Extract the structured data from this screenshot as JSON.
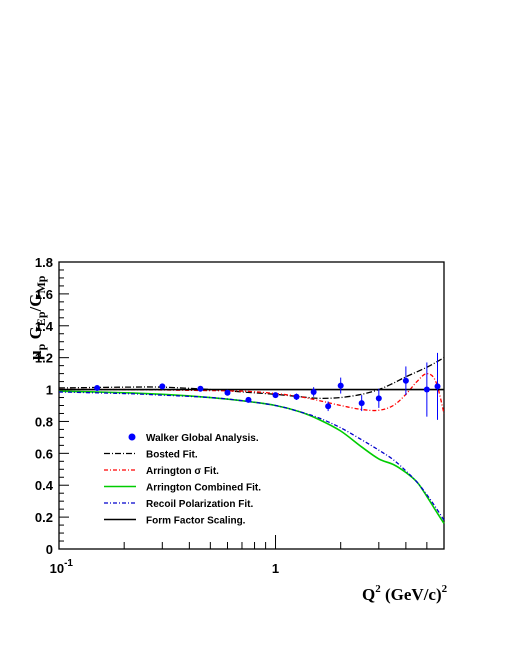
{
  "chart_data": {
    "type": "line",
    "xscale": "log",
    "xlim": [
      0.1,
      6
    ],
    "ylim": [
      0,
      1.8
    ],
    "x_tick_labels": [
      {
        "value": 0.1,
        "label": "10",
        "sup": "-1"
      },
      {
        "value": 1,
        "label": "1",
        "sup": ""
      }
    ],
    "y_ticks": [
      0,
      0.2,
      0.4,
      0.6,
      0.8,
      1,
      1.2,
      1.4,
      1.6,
      1.8
    ],
    "y_tick_labels": [
      "0",
      "0.2",
      "0.4",
      "0.6",
      "0.8",
      "1",
      "1.2",
      "1.4",
      "1.6",
      "1.8"
    ],
    "ylabel": {
      "mu": "μ",
      "mu_sub": "p",
      "g": "G",
      "g_sub": "Ep",
      "slash": "/G",
      "den_sub": "Mp"
    },
    "xlabel": {
      "q": "Q",
      "q_sup": "2",
      "unit": " (GeV/c)",
      "unit_sup": "2"
    },
    "grid": false,
    "legend_position": "bottom-left",
    "points": {
      "name": "Walker Global Analysis.",
      "color": "#0000ff",
      "data": [
        {
          "x": 0.15,
          "y": 1.01,
          "err": 0.01
        },
        {
          "x": 0.3,
          "y": 1.02,
          "err": 0.01
        },
        {
          "x": 0.45,
          "y": 1.005,
          "err": 0.01
        },
        {
          "x": 0.6,
          "y": 0.98,
          "err": 0.012
        },
        {
          "x": 0.75,
          "y": 0.935,
          "err": 0.015
        },
        {
          "x": 1.0,
          "y": 0.965,
          "err": 0.015
        },
        {
          "x": 1.25,
          "y": 0.955,
          "err": 0.02
        },
        {
          "x": 1.5,
          "y": 0.985,
          "err": 0.03
        },
        {
          "x": 1.75,
          "y": 0.895,
          "err": 0.03
        },
        {
          "x": 2.0,
          "y": 1.025,
          "err": 0.05
        },
        {
          "x": 2.5,
          "y": 0.915,
          "err": 0.05
        },
        {
          "x": 3.0,
          "y": 0.945,
          "err": 0.06
        },
        {
          "x": 4.0,
          "y": 1.055,
          "err": 0.09
        },
        {
          "x": 5.0,
          "y": 1.0,
          "err": 0.17
        },
        {
          "x": 5.6,
          "y": 1.02,
          "err": 0.21
        }
      ]
    },
    "series": [
      {
        "name": "Bosted Fit.",
        "color": "#000000",
        "dash": "6 2 1 2",
        "x": [
          0.1,
          0.2,
          0.3,
          0.5,
          0.7,
          1.0,
          1.3,
          1.6,
          2.0,
          2.5,
          3.0,
          3.5,
          4.0,
          5.0,
          6.0
        ],
        "y": [
          1.01,
          1.015,
          1.015,
          1.0,
          0.985,
          0.97,
          0.955,
          0.945,
          0.95,
          0.97,
          1.0,
          1.04,
          1.08,
          1.14,
          1.2
        ]
      },
      {
        "name": "Arrington σ Fit.",
        "color": "#ff0000",
        "dash": "4 2 1 2",
        "x": [
          0.1,
          0.2,
          0.4,
          0.7,
          1.0,
          1.3,
          1.6,
          2.0,
          2.5,
          3.0,
          3.5,
          4.0,
          4.5,
          5.0,
          5.5,
          6.0
        ],
        "y": [
          1.0,
          1.0,
          0.995,
          0.99,
          0.975,
          0.955,
          0.93,
          0.9,
          0.875,
          0.87,
          0.9,
          0.97,
          1.05,
          1.1,
          1.05,
          0.85
        ]
      },
      {
        "name": "Arrington Combined Fit.",
        "color": "#00cc00",
        "dash": "",
        "x": [
          0.1,
          0.2,
          0.3,
          0.5,
          0.7,
          1.0,
          1.3,
          1.6,
          2.0,
          2.5,
          3.0,
          3.5,
          4.0,
          4.5,
          5.0,
          5.5,
          6.0
        ],
        "y": [
          0.99,
          0.98,
          0.97,
          0.95,
          0.93,
          0.9,
          0.86,
          0.81,
          0.74,
          0.64,
          0.565,
          0.53,
          0.48,
          0.42,
          0.33,
          0.24,
          0.16
        ]
      },
      {
        "name": "Recoil Polarization Fit.",
        "color": "#0000cc",
        "dash": "4 2 1 2",
        "x": [
          0.1,
          0.2,
          0.3,
          0.5,
          0.7,
          1.0,
          1.3,
          1.6,
          2.0,
          2.5,
          3.0,
          3.5,
          4.0,
          4.5,
          5.0,
          5.5,
          6.0
        ],
        "y": [
          0.985,
          0.975,
          0.965,
          0.95,
          0.93,
          0.9,
          0.86,
          0.82,
          0.76,
          0.685,
          0.62,
          0.56,
          0.49,
          0.42,
          0.34,
          0.26,
          0.18
        ]
      },
      {
        "name": "Form Factor Scaling.",
        "color": "#000000",
        "dash": "",
        "x": [
          0.1,
          6.0
        ],
        "y": [
          1.0,
          1.0
        ]
      }
    ]
  }
}
